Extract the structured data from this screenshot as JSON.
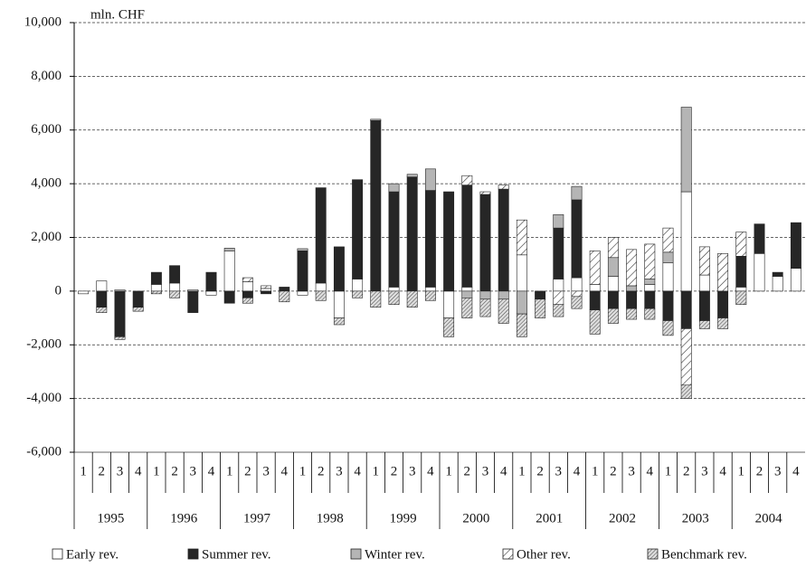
{
  "chart_data": {
    "type": "bar",
    "stacked": true,
    "y_label": "mln. CHF",
    "categories": [
      "1",
      "2",
      "3",
      "4",
      "1",
      "2",
      "3",
      "4",
      "1",
      "2",
      "3",
      "4",
      "1",
      "2",
      "3",
      "4",
      "1",
      "2",
      "3",
      "4",
      "1",
      "2",
      "3",
      "4",
      "1",
      "2",
      "3",
      "4",
      "1",
      "2",
      "3",
      "4",
      "1",
      "2",
      "3",
      "4",
      "1",
      "2",
      "3",
      "4"
    ],
    "groups": [
      "1995",
      "1996",
      "1997",
      "1998",
      "1999",
      "2000",
      "2001",
      "2002",
      "2003",
      "2004"
    ],
    "series": [
      {
        "name": "Early rev.",
        "color": "#ffffff",
        "hatch": "none",
        "values": [
          -100,
          380,
          50,
          0,
          250,
          300,
          50,
          -150,
          1500,
          350,
          100,
          0,
          -150,
          300,
          -1000,
          450,
          0,
          150,
          0,
          150,
          -1000,
          150,
          0,
          0,
          1350,
          0,
          450,
          500,
          250,
          550,
          0,
          250,
          1050,
          3700,
          600,
          0,
          150,
          1400,
          550,
          850
        ]
      },
      {
        "name": "Summer rev.",
        "color": "#262626",
        "hatch": "none",
        "values": [
          0,
          -600,
          -1700,
          -600,
          450,
          650,
          -800,
          700,
          -450,
          -250,
          -100,
          150,
          1500,
          3550,
          1650,
          3700,
          6350,
          3550,
          4250,
          3600,
          3700,
          3800,
          3600,
          3800,
          0,
          -300,
          1900,
          2900,
          -700,
          -650,
          -650,
          -650,
          -1100,
          -1400,
          -1100,
          -1000,
          1150,
          1100,
          150,
          1700
        ]
      },
      {
        "name": "Winter rev.",
        "color": "#b5b5b5",
        "hatch": "none",
        "values": [
          0,
          0,
          0,
          0,
          0,
          0,
          0,
          0,
          100,
          0,
          0,
          0,
          80,
          0,
          0,
          0,
          50,
          300,
          100,
          800,
          0,
          -250,
          -300,
          -300,
          -850,
          0,
          500,
          500,
          0,
          700,
          200,
          200,
          400,
          3150,
          0,
          0,
          0,
          0,
          0,
          0
        ]
      },
      {
        "name": "Other rev.",
        "color": "#ffffff",
        "hatch": "diagonal",
        "values": [
          0,
          0,
          0,
          0,
          0,
          0,
          0,
          0,
          0,
          150,
          100,
          0,
          0,
          0,
          0,
          0,
          0,
          0,
          0,
          0,
          0,
          350,
          100,
          150,
          1300,
          0,
          -500,
          -200,
          1250,
          750,
          1350,
          1300,
          900,
          -2100,
          1050,
          1400,
          900,
          0,
          0,
          0
        ]
      },
      {
        "name": "Benchmark rev.",
        "color": "#d0d0d0",
        "hatch": "dense",
        "values": [
          0,
          -200,
          -100,
          -150,
          -100,
          -250,
          0,
          0,
          0,
          -200,
          0,
          -400,
          0,
          -350,
          -250,
          -250,
          -600,
          -500,
          -600,
          -350,
          -700,
          -750,
          -650,
          -900,
          -850,
          -700,
          -450,
          -450,
          -900,
          -550,
          -400,
          -400,
          -550,
          -500,
          -300,
          -400,
          -500,
          0,
          0,
          0
        ]
      }
    ],
    "ylim": [
      -6000,
      10000
    ],
    "yticks": [
      {
        "value": -6000,
        "label": "-6,000"
      },
      {
        "value": -4000,
        "label": "-4,000"
      },
      {
        "value": -2000,
        "label": "-2,000"
      },
      0,
      {
        "value": 2000,
        "label": "2,000"
      },
      {
        "value": 4000,
        "label": "4,000"
      },
      {
        "value": 6000,
        "label": "6,000"
      },
      {
        "value": 8000,
        "label": "8,000"
      },
      {
        "value": 10000,
        "label": "10,000"
      }
    ],
    "grid": true,
    "legend": "bottom"
  }
}
